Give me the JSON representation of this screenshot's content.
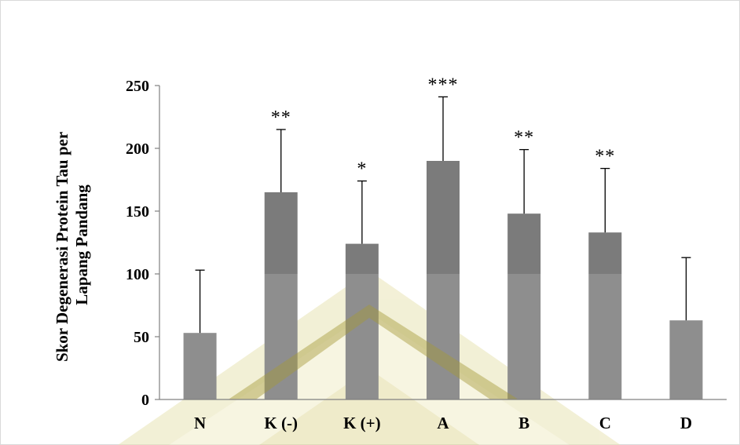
{
  "chart_data": {
    "type": "bar",
    "title": "",
    "xlabel": "",
    "ylabel_lines": [
      "Skor Degenerasi Protein Tau per",
      "Lapang Pandang"
    ],
    "categories": [
      "N",
      "K (-)",
      "K (+)",
      "A",
      "B",
      "C",
      "D"
    ],
    "values": [
      53,
      165,
      124,
      190,
      148,
      133,
      63
    ],
    "error_upper": [
      103,
      215,
      174,
      241,
      199,
      184,
      113
    ],
    "significance": [
      "",
      "**",
      "*",
      "***",
      "**",
      "**",
      ""
    ],
    "ylim": [
      0,
      250
    ],
    "yticks": [
      0,
      50,
      100,
      150,
      200,
      250
    ],
    "grid": false,
    "legend": "none",
    "colors": {
      "bar_upper": "#7b7b7b",
      "bar_lower": "#8e8e8e",
      "axis": "#808080",
      "error": "#000000",
      "watermark_olive": "#a59a37"
    }
  }
}
